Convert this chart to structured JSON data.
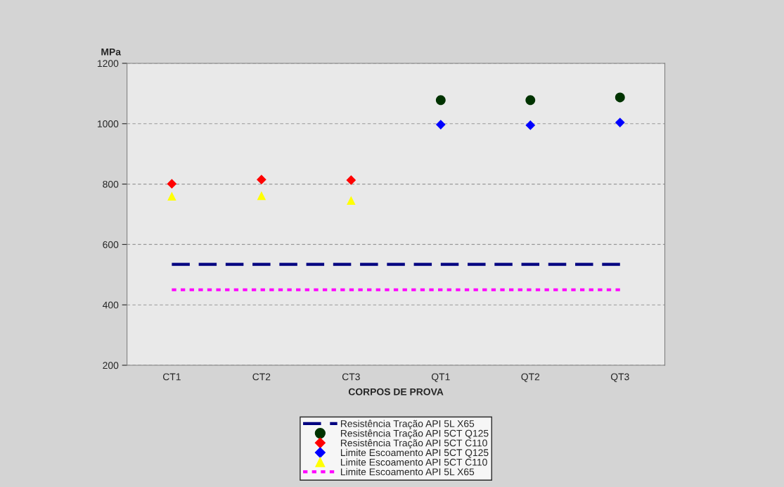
{
  "chart_data": {
    "type": "scatter",
    "xlabel": "CORPOS DE PROVA",
    "ylabel": "MPa",
    "categories": [
      "CT1",
      "CT2",
      "CT3",
      "QT1",
      "QT2",
      "QT3"
    ],
    "ylim": [
      200,
      1200
    ],
    "yticks": [
      200,
      400,
      600,
      800,
      1000,
      1200
    ],
    "grid": "y",
    "legend": "bottom",
    "series": [
      {
        "name": "Resistência Tração API 5L X65",
        "type": "line",
        "line_style": "dashed",
        "marker": "none",
        "color": "#000080",
        "values": [
          534,
          534,
          534,
          534,
          534,
          534
        ]
      },
      {
        "name": "Resistência Tração API 5CT Q125",
        "marker": "circle",
        "color": "#003300",
        "values": [
          null,
          null,
          null,
          1078,
          1078,
          1087
        ]
      },
      {
        "name": "Resistência Tração API 5CT C110",
        "marker": "diamond",
        "color": "#ff0000",
        "values": [
          801,
          815,
          813,
          null,
          null,
          null
        ]
      },
      {
        "name": "Limite Escoamento API 5CT Q125",
        "marker": "diamond",
        "color": "#0000ff",
        "values": [
          null,
          null,
          null,
          997,
          995,
          1004
        ]
      },
      {
        "name": "Limite Escoamento API 5CT C110",
        "marker": "triangle",
        "color": "#ffff00",
        "values": [
          760,
          762,
          746,
          null,
          null,
          null
        ]
      },
      {
        "name": "Limite Escoamento API 5L X65",
        "type": "line",
        "line_style": "dotted",
        "marker": "none",
        "color": "#ff00ff",
        "values": [
          450,
          450,
          450,
          450,
          450,
          450
        ]
      }
    ]
  }
}
